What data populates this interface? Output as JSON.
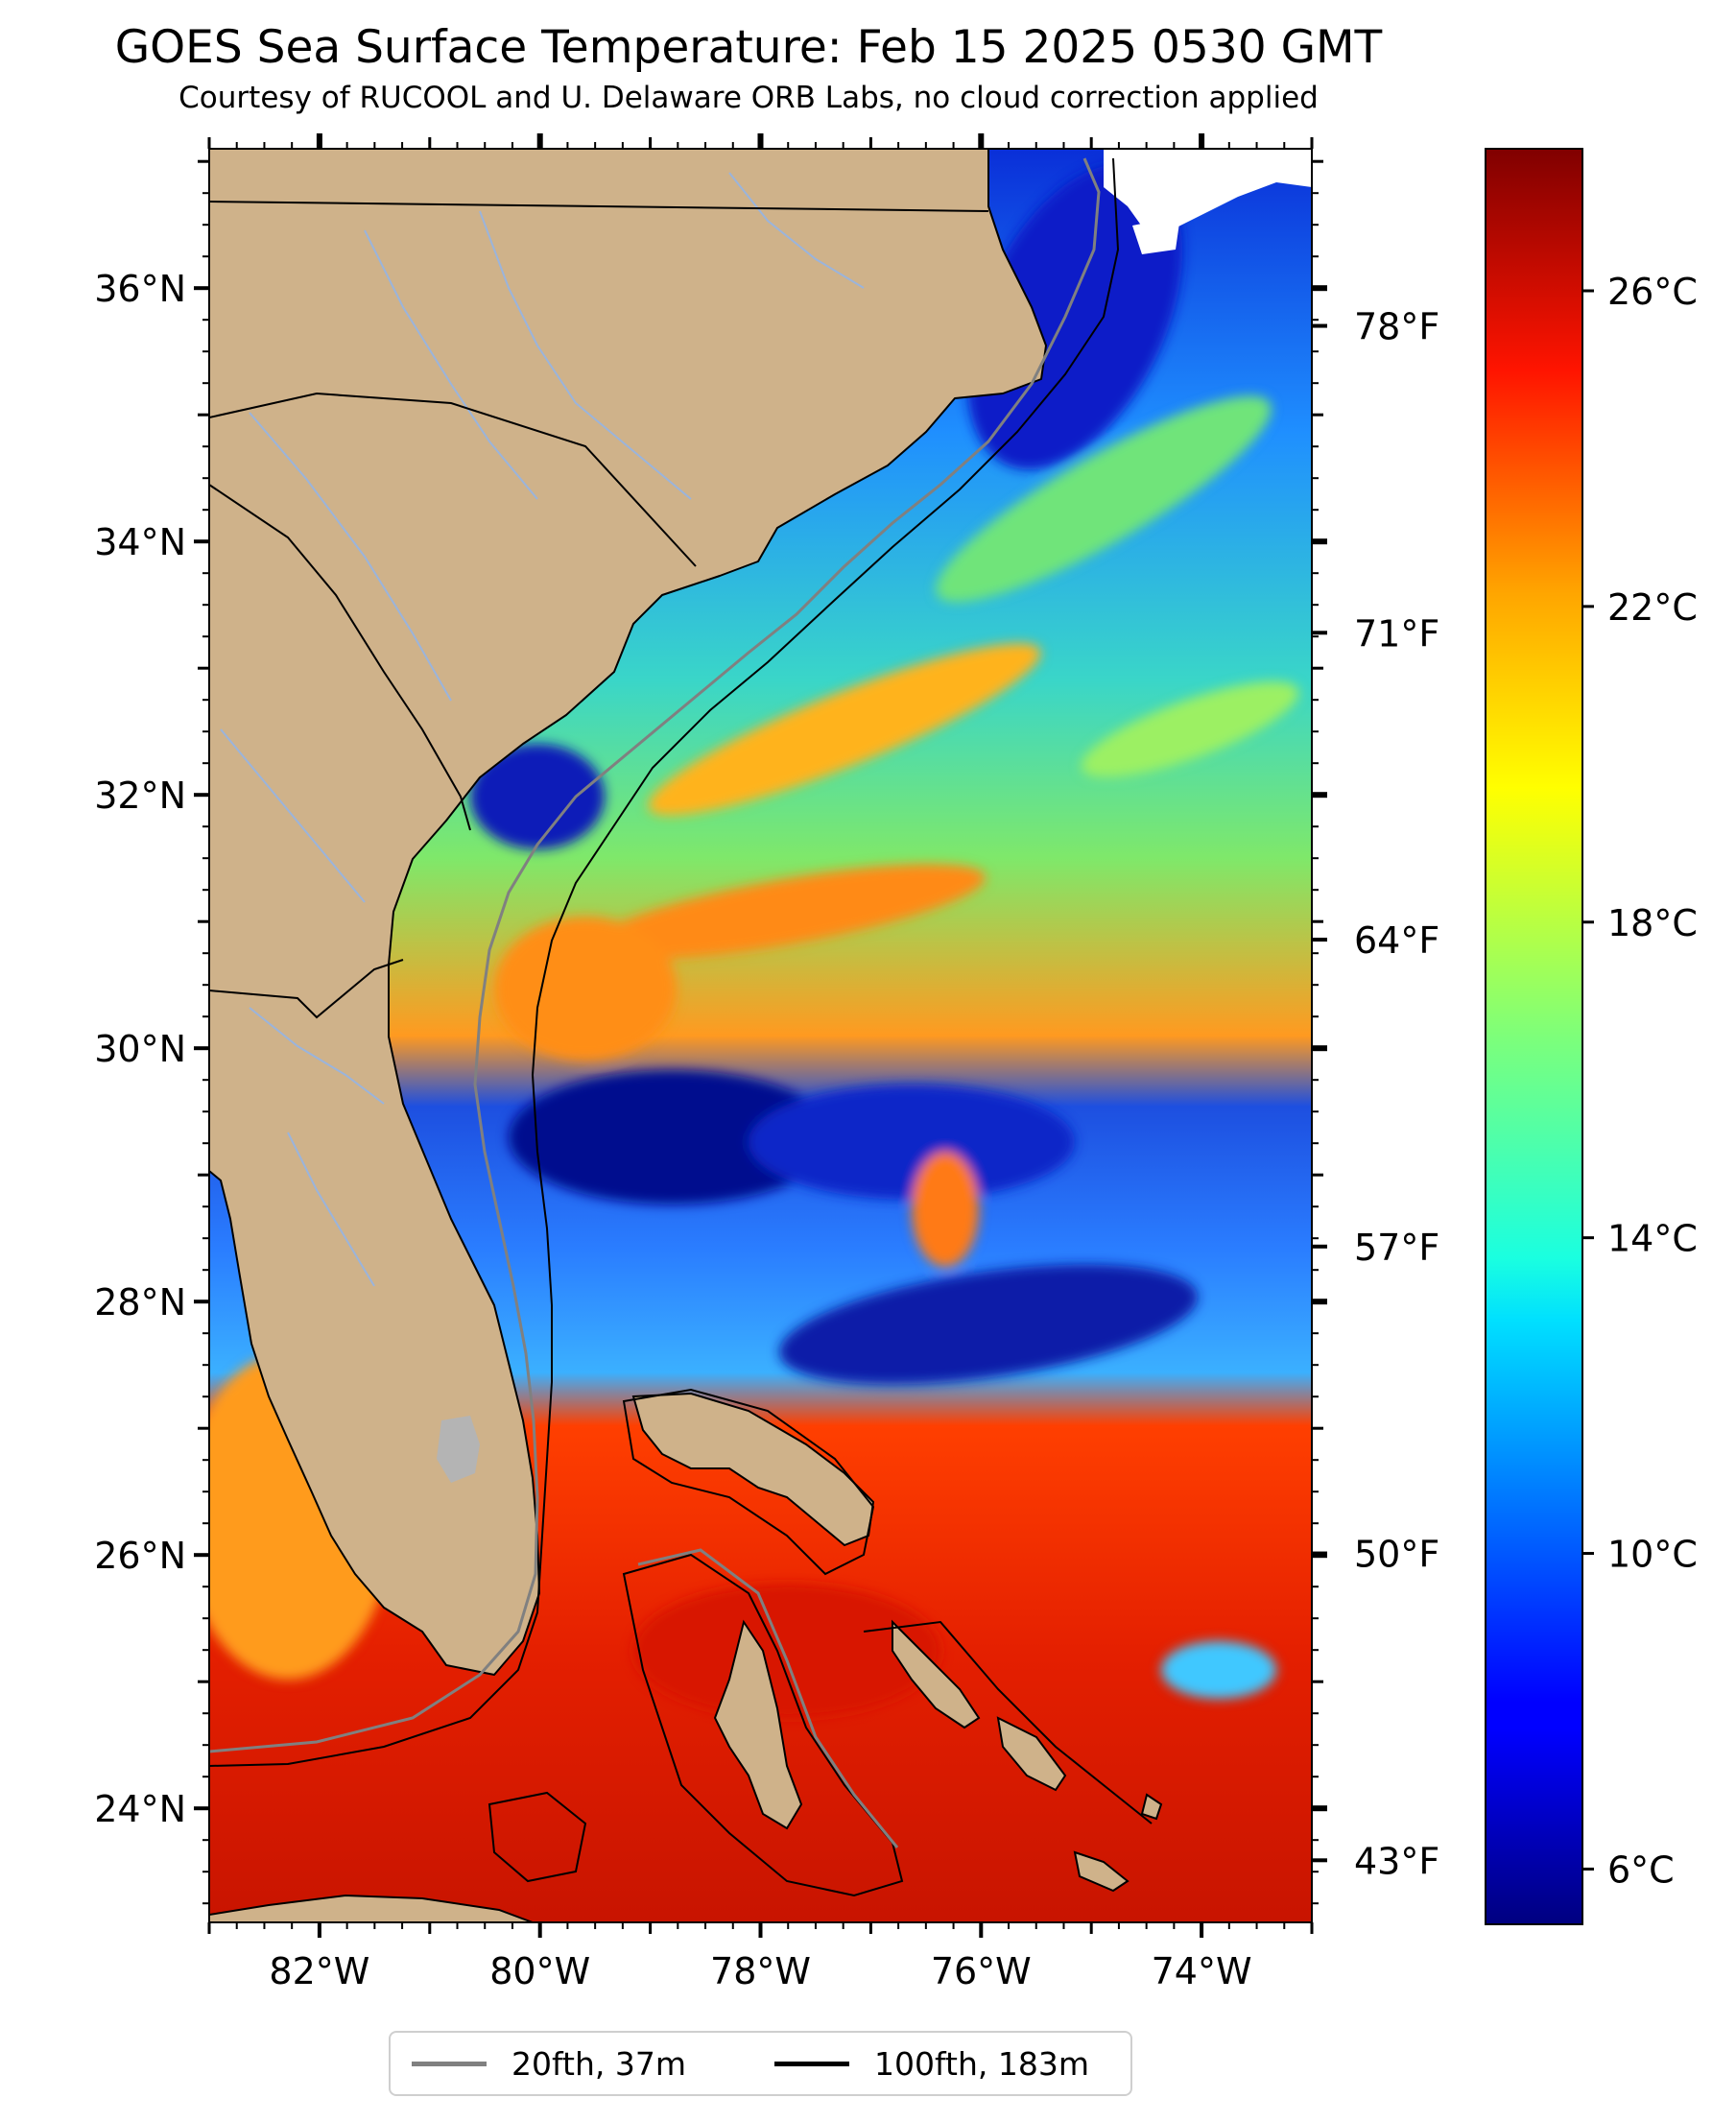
{
  "title": "GOES Sea Surface Temperature: Feb 15 2025 0530 GMT",
  "subtitle": "Courtesy of RUCOOL and U. Delaware ORB Labs, no cloud correction applied",
  "map": {
    "lon_range": [
      -83.0,
      -73.0
    ],
    "lat_range": [
      23.1,
      37.1
    ],
    "lon_ticks": [
      {
        "value": -82,
        "label": "82°W"
      },
      {
        "value": -80,
        "label": "80°W"
      },
      {
        "value": -78,
        "label": "78°W"
      },
      {
        "value": -76,
        "label": "76°W"
      },
      {
        "value": -74,
        "label": "74°W"
      }
    ],
    "lat_ticks": [
      {
        "value": 24,
        "label": "24°N"
      },
      {
        "value": 26,
        "label": "26°N"
      },
      {
        "value": 28,
        "label": "28°N"
      },
      {
        "value": 30,
        "label": "30°N"
      },
      {
        "value": 32,
        "label": "32°N"
      },
      {
        "value": 34,
        "label": "34°N"
      },
      {
        "value": 36,
        "label": "36°N"
      }
    ],
    "land_color": "#cfb28a",
    "cloud_color": "#ffffff",
    "river_color": "#9ab4dc",
    "lake_color": "#b4b4b4"
  },
  "colorbar": {
    "cmap": "jet",
    "range_c": [
      5.3,
      27.8
    ],
    "c_ticks": [
      {
        "value": 6,
        "label": "6°C"
      },
      {
        "value": 10,
        "label": "10°C"
      },
      {
        "value": 14,
        "label": "14°C"
      },
      {
        "value": 18,
        "label": "18°C"
      },
      {
        "value": 22,
        "label": "22°C"
      },
      {
        "value": 26,
        "label": "26°C"
      }
    ],
    "f_ticks": [
      {
        "value": 43,
        "label": "43°F"
      },
      {
        "value": 50,
        "label": "50°F"
      },
      {
        "value": 57,
        "label": "57°F"
      },
      {
        "value": 64,
        "label": "64°F"
      },
      {
        "value": 71,
        "label": "71°F"
      },
      {
        "value": 78,
        "label": "78°F"
      }
    ]
  },
  "legend": {
    "items": [
      {
        "label": "20fth, 37m",
        "color": "#808080"
      },
      {
        "label": "100fth, 183m",
        "color": "#000000"
      }
    ],
    "placement": "bottom-center"
  }
}
